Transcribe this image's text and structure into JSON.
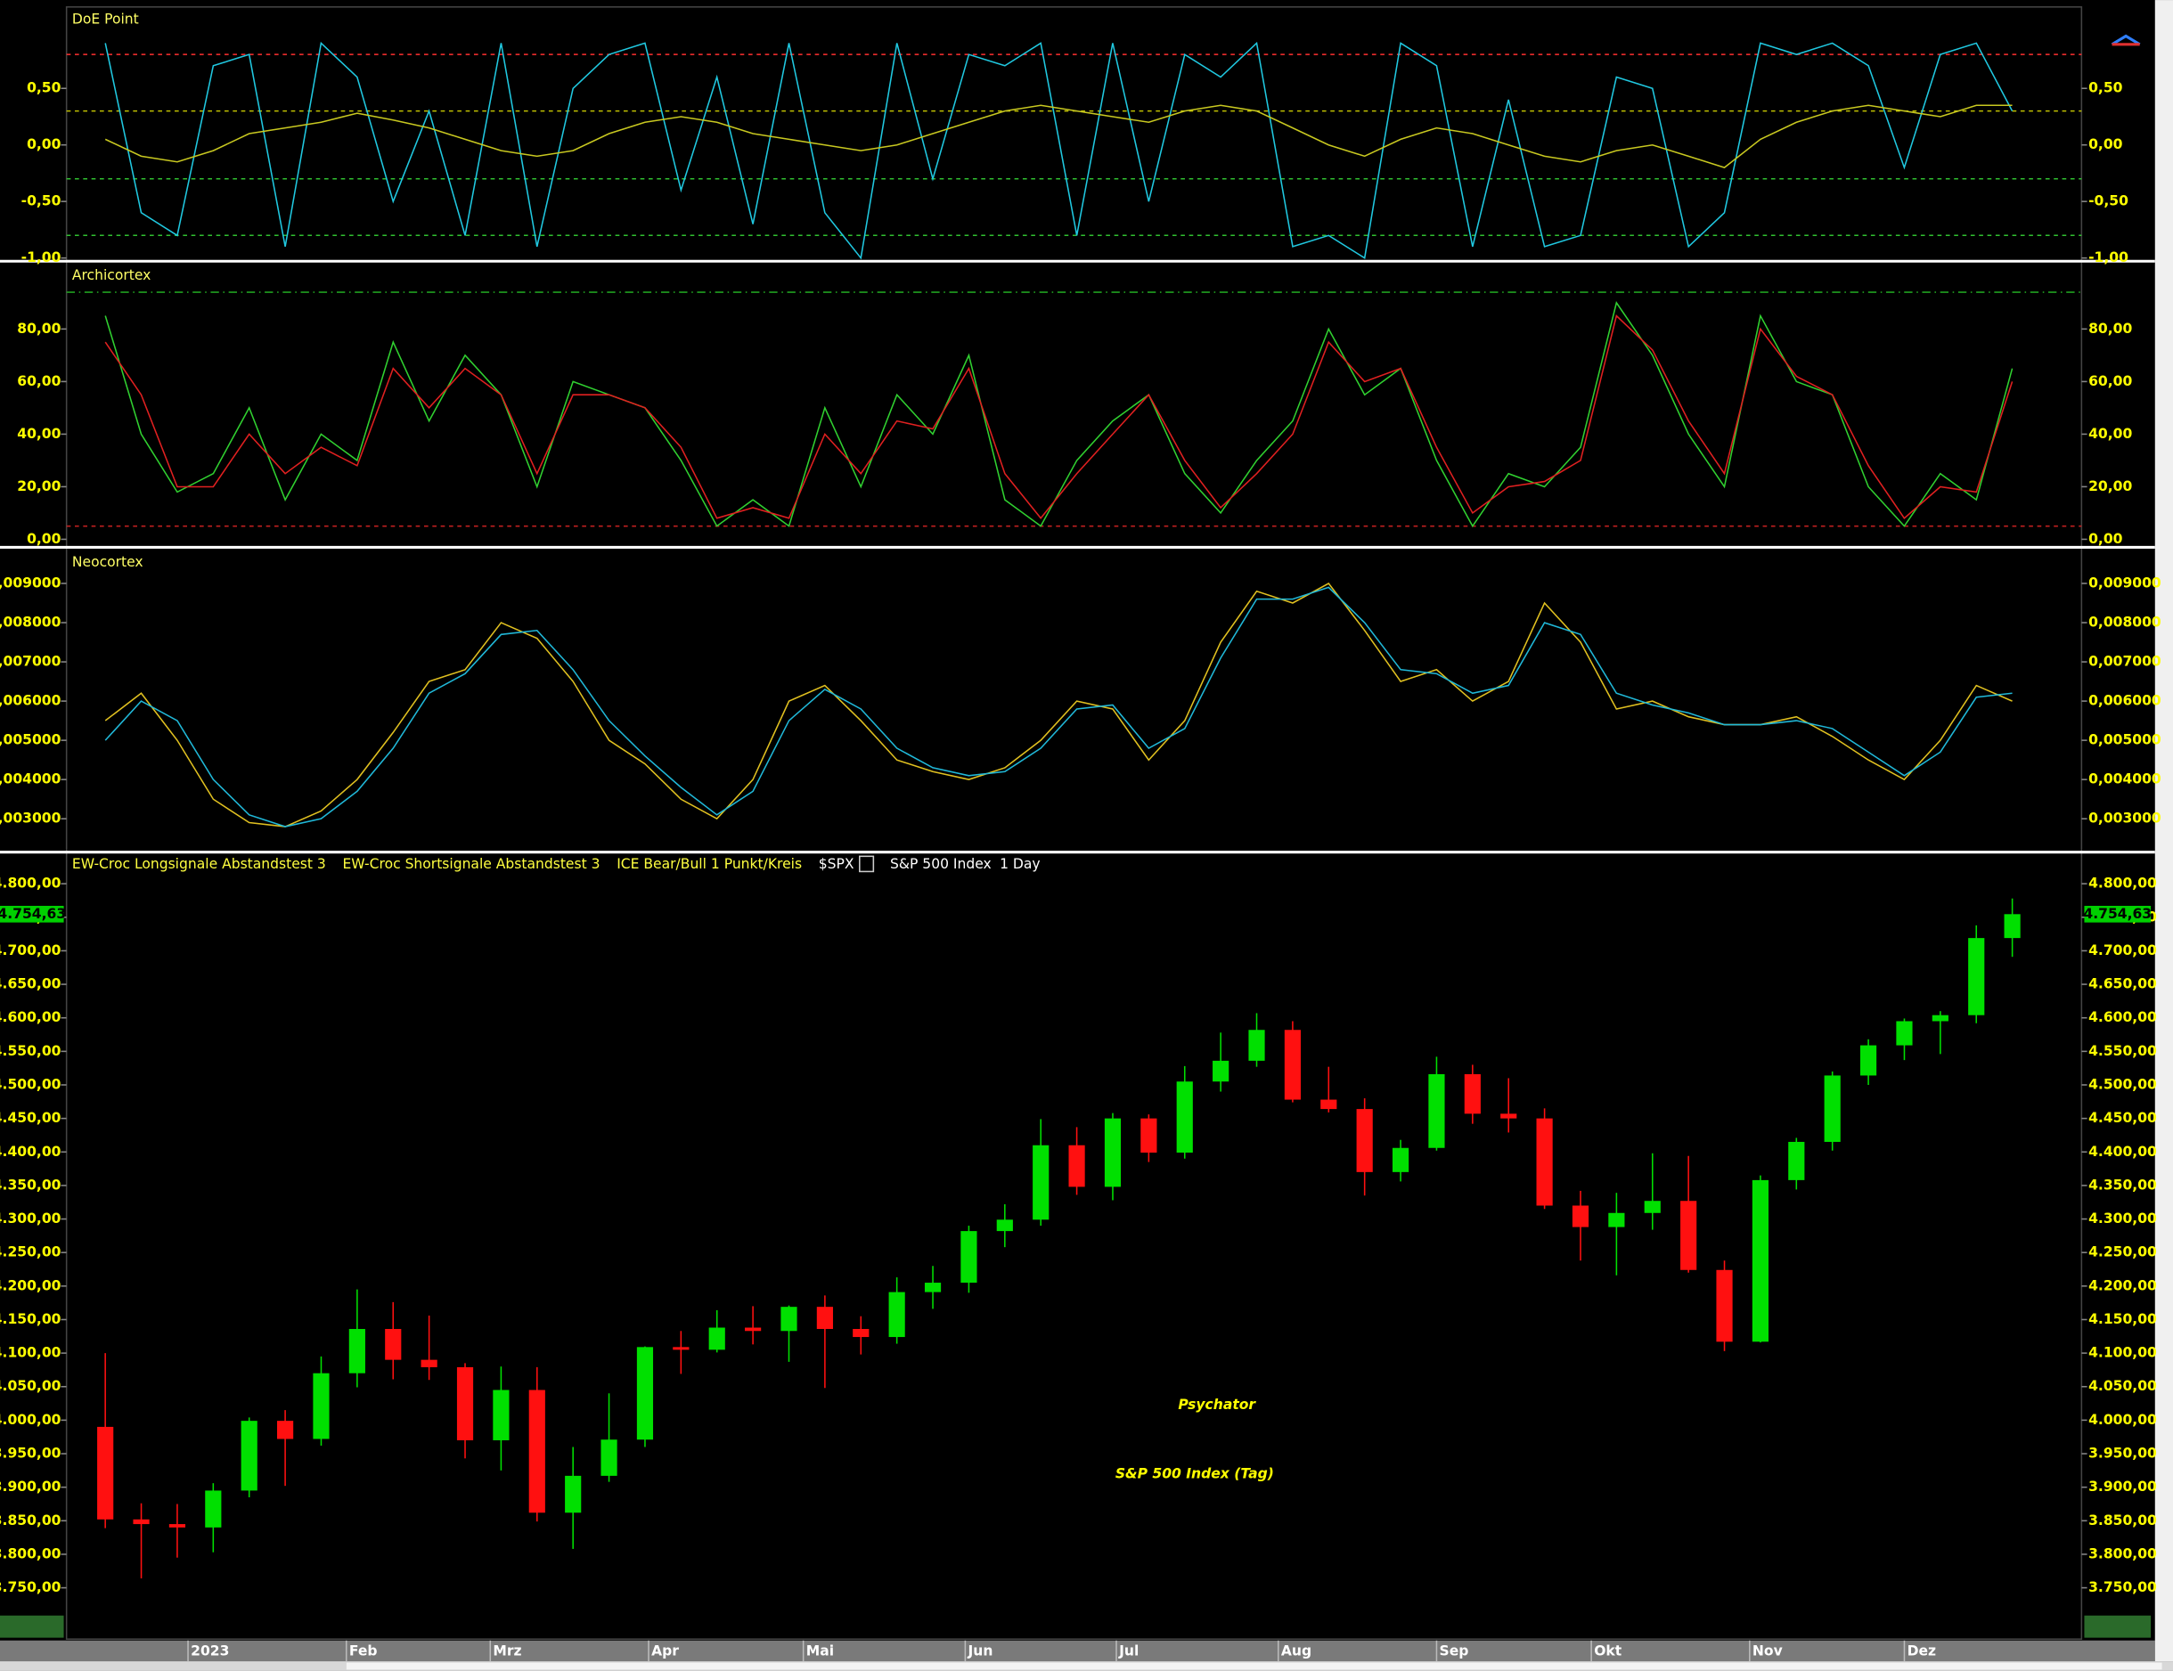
{
  "chart_data": [
    {
      "type": "line",
      "title": "DoE Point",
      "xlim": [
        -1,
        54
      ],
      "ylim": [
        -1.01,
        1.22
      ],
      "yticks": [
        {
          "value": 0.5,
          "label": "0,50"
        },
        {
          "value": 0,
          "label": "0,00"
        },
        {
          "value": -0.5,
          "label": "-0,50"
        },
        {
          "value": -1,
          "label": "-1,00"
        }
      ],
      "levels": [
        {
          "value": 0.8,
          "color": "#ff3030"
        },
        {
          "value": 0.3,
          "color": "#c0c000"
        },
        {
          "value": -0.3,
          "color": "#30c030"
        },
        {
          "value": -0.8,
          "color": "#30c030"
        }
      ],
      "x": [
        0,
        1,
        2,
        3,
        4,
        5,
        6,
        7,
        8,
        9,
        10,
        11,
        12,
        13,
        14,
        15,
        16,
        17,
        18,
        19,
        20,
        21,
        22,
        23,
        24,
        25,
        26,
        27,
        28,
        29,
        30,
        31,
        32,
        33,
        34,
        35,
        36,
        37,
        38,
        39,
        40,
        41,
        42,
        43,
        44,
        45,
        46,
        47,
        48,
        49,
        50,
        51,
        52,
        53
      ],
      "series": [
        {
          "color": "#20c8e0",
          "values": [
            0.9,
            -0.6,
            -0.8,
            0.7,
            0.8,
            -0.9,
            0.9,
            0.6,
            -0.5,
            0.3,
            -0.8,
            0.9,
            -0.9,
            0.5,
            0.8,
            0.9,
            -0.4,
            0.6,
            -0.7,
            0.9,
            -0.6,
            -1.0,
            0.9,
            -0.3,
            0.8,
            0.7,
            0.9,
            -0.8,
            0.9,
            -0.5,
            0.8,
            0.6,
            0.9,
            -0.9,
            -0.8,
            -1.0,
            0.9,
            0.7,
            -0.9,
            0.4,
            -0.9,
            -0.8,
            0.6,
            0.5,
            -0.9,
            -0.6,
            0.9,
            0.8,
            0.9,
            0.7,
            -0.2,
            0.8,
            0.9,
            0.3
          ]
        },
        {
          "color": "#c8c820",
          "values": [
            0.05,
            -0.1,
            -0.15,
            -0.05,
            0.1,
            0.15,
            0.2,
            0.28,
            0.22,
            0.15,
            0.05,
            -0.05,
            -0.1,
            -0.05,
            0.1,
            0.2,
            0.25,
            0.2,
            0.1,
            0.05,
            0.0,
            -0.05,
            0.0,
            0.1,
            0.2,
            0.3,
            0.35,
            0.3,
            0.25,
            0.2,
            0.3,
            0.35,
            0.3,
            0.15,
            0.0,
            -0.1,
            0.05,
            0.15,
            0.1,
            0.0,
            -0.1,
            -0.15,
            -0.05,
            0.0,
            -0.1,
            -0.2,
            0.05,
            0.2,
            0.3,
            0.35,
            0.3,
            0.25,
            0.35,
            0.35
          ]
        }
      ]
    },
    {
      "type": "line",
      "title": "Archicortex",
      "xlim": [
        -1,
        54
      ],
      "ylim": [
        -2,
        105
      ],
      "yticks": [
        {
          "value": 80,
          "label": "80,00"
        },
        {
          "value": 60,
          "label": "60,00"
        },
        {
          "value": 40,
          "label": "40,00"
        },
        {
          "value": 20,
          "label": "20,00"
        },
        {
          "value": 0,
          "label": "0,00"
        }
      ],
      "levels": [
        {
          "value": 94,
          "color": "#20a020"
        },
        {
          "value": 5,
          "color": "#c02020"
        }
      ],
      "x": [
        0,
        1,
        2,
        3,
        4,
        5,
        6,
        7,
        8,
        9,
        10,
        11,
        12,
        13,
        14,
        15,
        16,
        17,
        18,
        19,
        20,
        21,
        22,
        23,
        24,
        25,
        26,
        27,
        28,
        29,
        30,
        31,
        32,
        33,
        34,
        35,
        36,
        37,
        38,
        39,
        40,
        41,
        42,
        43,
        44,
        45,
        46,
        47,
        48,
        49,
        50,
        51,
        52,
        53
      ],
      "series": [
        {
          "color": "#30d030",
          "values": [
            85,
            40,
            18,
            25,
            50,
            15,
            40,
            30,
            75,
            45,
            70,
            55,
            20,
            60,
            55,
            50,
            30,
            5,
            15,
            5,
            50,
            20,
            55,
            40,
            70,
            15,
            5,
            30,
            45,
            55,
            25,
            10,
            30,
            45,
            80,
            55,
            65,
            30,
            5,
            25,
            20,
            35,
            90,
            70,
            40,
            20,
            85,
            60,
            55,
            20,
            5,
            25,
            15,
            65
          ]
        },
        {
          "color": "#e02020",
          "values": [
            75,
            55,
            20,
            20,
            40,
            25,
            35,
            28,
            65,
            50,
            65,
            55,
            25,
            55,
            55,
            50,
            35,
            8,
            12,
            8,
            40,
            25,
            45,
            42,
            65,
            25,
            8,
            25,
            40,
            55,
            30,
            12,
            25,
            40,
            75,
            60,
            65,
            35,
            10,
            20,
            22,
            30,
            85,
            72,
            45,
            25,
            80,
            62,
            55,
            28,
            8,
            20,
            18,
            60
          ]
        }
      ]
    },
    {
      "type": "line",
      "title": "Neocortex",
      "xlim": [
        -1,
        54
      ],
      "ylim": [
        0.00222,
        0.00985
      ],
      "yticks": [
        {
          "value": 0.009,
          "label": "0,009000"
        },
        {
          "value": 0.008,
          "label": "0,008000"
        },
        {
          "value": 0.007,
          "label": "0,007000"
        },
        {
          "value": 0.006,
          "label": "0,006000"
        },
        {
          "value": 0.005,
          "label": "0,005000"
        },
        {
          "value": 0.004,
          "label": "0,004000"
        },
        {
          "value": 0.003,
          "label": "0,003000"
        }
      ],
      "x": [
        0,
        1,
        2,
        3,
        4,
        5,
        6,
        7,
        8,
        9,
        10,
        11,
        12,
        13,
        14,
        15,
        16,
        17,
        18,
        19,
        20,
        21,
        22,
        23,
        24,
        25,
        26,
        27,
        28,
        29,
        30,
        31,
        32,
        33,
        34,
        35,
        36,
        37,
        38,
        39,
        40,
        41,
        42,
        43,
        44,
        45,
        46,
        47,
        48,
        49,
        50,
        51,
        52,
        53
      ],
      "series": [
        {
          "color": "#e0c020",
          "values": [
            0.0055,
            0.0062,
            0.005,
            0.0035,
            0.0029,
            0.0028,
            0.0032,
            0.004,
            0.0052,
            0.0065,
            0.0068,
            0.008,
            0.0076,
            0.0065,
            0.005,
            0.0044,
            0.0035,
            0.003,
            0.004,
            0.006,
            0.0064,
            0.0055,
            0.0045,
            0.0042,
            0.004,
            0.0043,
            0.005,
            0.006,
            0.0058,
            0.0045,
            0.0055,
            0.0075,
            0.0088,
            0.0085,
            0.009,
            0.0078,
            0.0065,
            0.0068,
            0.006,
            0.0065,
            0.0085,
            0.0075,
            0.0058,
            0.006,
            0.0056,
            0.0054,
            0.0054,
            0.0056,
            0.0051,
            0.0045,
            0.004,
            0.005,
            0.0064,
            0.006
          ]
        },
        {
          "color": "#20b8d8",
          "values": [
            0.005,
            0.006,
            0.0055,
            0.004,
            0.0031,
            0.0028,
            0.003,
            0.0037,
            0.0048,
            0.0062,
            0.0067,
            0.0077,
            0.0078,
            0.0068,
            0.0055,
            0.0046,
            0.0038,
            0.0031,
            0.0037,
            0.0055,
            0.0063,
            0.0058,
            0.0048,
            0.0043,
            0.0041,
            0.0042,
            0.0048,
            0.0058,
            0.0059,
            0.0048,
            0.0053,
            0.0071,
            0.0086,
            0.0086,
            0.0089,
            0.008,
            0.0068,
            0.0067,
            0.0062,
            0.0064,
            0.008,
            0.0077,
            0.0062,
            0.0059,
            0.0057,
            0.0054,
            0.0054,
            0.0055,
            0.0053,
            0.0047,
            0.0041,
            0.0047,
            0.0061,
            0.0062
          ]
        }
      ]
    },
    {
      "type": "candlestick",
      "header": [
        "EW-Croc Longsignale Abstandstest 3",
        "EW-Croc Shortsignale Abstandstest 3",
        "ICE Bear/Bull 1 Punkt/Kreis"
      ],
      "symbol": "$SPX",
      "name": "S&P 500 Index",
      "interval": "1 Day",
      "annotations": [
        "Psychator",
        "S&P 500 Index (Tag)"
      ],
      "last_price": {
        "value": 4754.63,
        "label": "4.754,63"
      },
      "xlim": [
        -1,
        54
      ],
      "ylim": [
        3673.5,
        4843
      ],
      "xticks": [
        {
          "value": 2.3,
          "label": "2023"
        },
        {
          "value": 6.7,
          "label": "Feb"
        },
        {
          "value": 10.7,
          "label": "Mrz"
        },
        {
          "value": 15.1,
          "label": "Apr"
        },
        {
          "value": 19.4,
          "label": "Mai"
        },
        {
          "value": 23.9,
          "label": "Jun"
        },
        {
          "value": 28.1,
          "label": "Jul"
        },
        {
          "value": 32.6,
          "label": "Aug"
        },
        {
          "value": 37,
          "label": "Sep"
        },
        {
          "value": 41.3,
          "label": "Okt"
        },
        {
          "value": 45.7,
          "label": "Nov"
        },
        {
          "value": 50,
          "label": "Dez"
        }
      ],
      "yticks": [
        {
          "value": 4800,
          "label": "4.800,00"
        },
        {
          "value": 4750,
          "label": "4.750,00"
        },
        {
          "value": 4700,
          "label": "4.700,00"
        },
        {
          "value": 4650,
          "label": "4.650,00"
        },
        {
          "value": 4600,
          "label": "4.600,00"
        },
        {
          "value": 4550,
          "label": "4.550,00"
        },
        {
          "value": 4500,
          "label": "4.500,00"
        },
        {
          "value": 4450,
          "label": "4.450,00"
        },
        {
          "value": 4400,
          "label": "4.400,00"
        },
        {
          "value": 4350,
          "label": "4.350,00"
        },
        {
          "value": 4300,
          "label": "4.300,00"
        },
        {
          "value": 4250,
          "label": "4.250,00"
        },
        {
          "value": 4200,
          "label": "4.200,00"
        },
        {
          "value": 4150,
          "label": "4.150,00"
        },
        {
          "value": 4100,
          "label": "4.100,00"
        },
        {
          "value": 4050,
          "label": "4.050,00"
        },
        {
          "value": 4000,
          "label": "4.000,00"
        },
        {
          "value": 3950,
          "label": "3.950,00"
        },
        {
          "value": 3900,
          "label": "3.900,00"
        },
        {
          "value": 3850,
          "label": "3.850,00"
        },
        {
          "value": 3800,
          "label": "3.800,00"
        },
        {
          "value": 3750,
          "label": "3.750,00"
        }
      ],
      "up_color": "#00e000",
      "down_color": "#ff1010",
      "x": [
        0,
        1,
        2,
        3,
        4,
        5,
        6,
        7,
        8,
        9,
        10,
        11,
        12,
        13,
        14,
        15,
        16,
        17,
        18,
        19,
        20,
        21,
        22,
        23,
        24,
        25,
        26,
        27,
        28,
        29,
        30,
        31,
        32,
        33,
        34,
        35,
        36,
        37,
        38,
        39,
        40,
        41,
        42,
        43,
        44,
        45,
        46,
        47,
        48,
        49,
        50,
        51,
        52,
        53
      ],
      "open": [
        3990,
        3852,
        3845,
        3840,
        3895,
        3999,
        3972,
        4070,
        4136,
        4090,
        4079,
        3970,
        4045,
        3862,
        3917,
        3971,
        4109,
        4105,
        4138,
        4133,
        4169,
        4136,
        4124,
        4191,
        4205,
        4282,
        4299,
        4410,
        4348,
        4450,
        4399,
        4505,
        4536,
        4582,
        4478,
        4464,
        4370,
        4406,
        4516,
        4457,
        4450,
        4320,
        4288,
        4309,
        4327,
        4224,
        4117,
        4358,
        4415,
        4514,
        4559,
        4595,
        4604,
        4719
      ],
      "high": [
        4100,
        3876,
        3875,
        3906,
        4004,
        4015,
        4095,
        4195,
        4176,
        4156,
        4085,
        4080,
        4079,
        3960,
        4040,
        4110,
        4133,
        4164,
        4170,
        4171,
        4186,
        4155,
        4213,
        4230,
        4290,
        4322,
        4449,
        4437,
        4458,
        4456,
        4528,
        4578,
        4607,
        4595,
        4527,
        4480,
        4418,
        4542,
        4530,
        4510,
        4465,
        4342,
        4339,
        4398,
        4394,
        4238,
        4365,
        4421,
        4520,
        4568,
        4599,
        4610,
        4738,
        4778
      ],
      "low": [
        3839,
        3764,
        3795,
        3803,
        3885,
        3902,
        3962,
        4049,
        4061,
        4060,
        3943,
        3925,
        3849,
        3808,
        3908,
        3960,
        4069,
        4101,
        4113,
        4087,
        4048,
        4098,
        4114,
        4166,
        4190,
        4258,
        4290,
        4336,
        4328,
        4385,
        4390,
        4490,
        4527,
        4474,
        4459,
        4335,
        4356,
        4402,
        4442,
        4429,
        4315,
        4238,
        4216,
        4284,
        4220,
        4103,
        4116,
        4344,
        4402,
        4500,
        4537,
        4546,
        4592,
        4691
      ],
      "close": [
        3852,
        3845,
        3840,
        3895,
        3999,
        3972,
        4070,
        4136,
        4090,
        4079,
        3970,
        4045,
        3862,
        3917,
        3971,
        4109,
        4105,
        4138,
        4133,
        4169,
        4136,
        4124,
        4191,
        4205,
        4282,
        4299,
        4410,
        4348,
        4450,
        4399,
        4505,
        4536,
        4582,
        4478,
        4464,
        4370,
        4406,
        4516,
        4457,
        4450,
        4320,
        4288,
        4309,
        4327,
        4224,
        4117,
        4358,
        4415,
        4514,
        4559,
        4595,
        4604,
        4719,
        4754.63
      ]
    }
  ]
}
